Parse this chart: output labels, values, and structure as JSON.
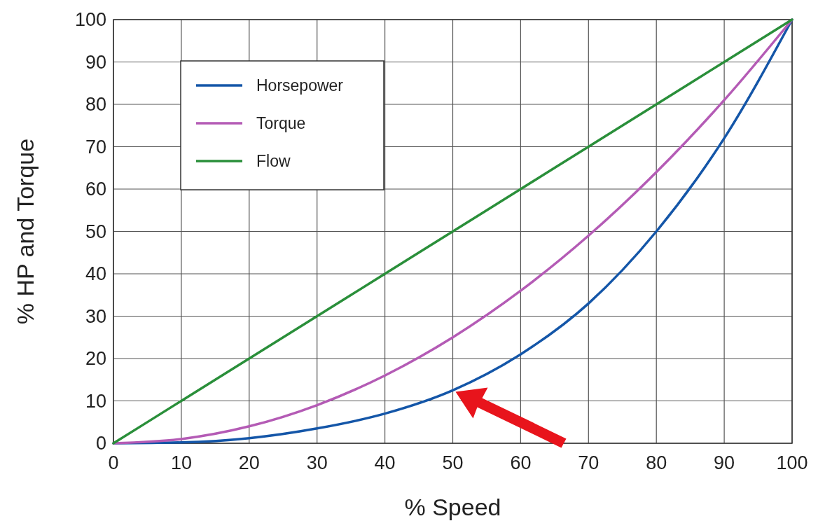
{
  "chart_data": {
    "type": "line",
    "xlabel": "% Speed",
    "ylabel": "% HP and Torque",
    "x": [
      0,
      10,
      20,
      30,
      40,
      50,
      60,
      70,
      80,
      90,
      100
    ],
    "series": [
      {
        "name": "Horsepower",
        "color": "#1456a8",
        "values": [
          0,
          0.2,
          1.2,
          3.5,
          7,
          12.5,
          21,
          33,
          50,
          72,
          100
        ]
      },
      {
        "name": "Torque",
        "color": "#b45bb5",
        "values": [
          0,
          1,
          4,
          9,
          16,
          25,
          36,
          49,
          64,
          81,
          100
        ]
      },
      {
        "name": "Flow",
        "color": "#2a8f3a",
        "values": [
          0,
          10,
          20,
          30,
          40,
          50,
          60,
          70,
          80,
          90,
          100
        ]
      }
    ],
    "xlim": [
      0,
      100
    ],
    "xticks": [
      0,
      10,
      20,
      30,
      40,
      50,
      60,
      70,
      80,
      90,
      100
    ],
    "ylim": [
      0,
      100
    ],
    "yticks": [
      0,
      10,
      20,
      30,
      40,
      50,
      60,
      70,
      80,
      90,
      100
    ],
    "grid": true,
    "legend": "top left",
    "line_style": "solid",
    "marker": "none"
  }
}
